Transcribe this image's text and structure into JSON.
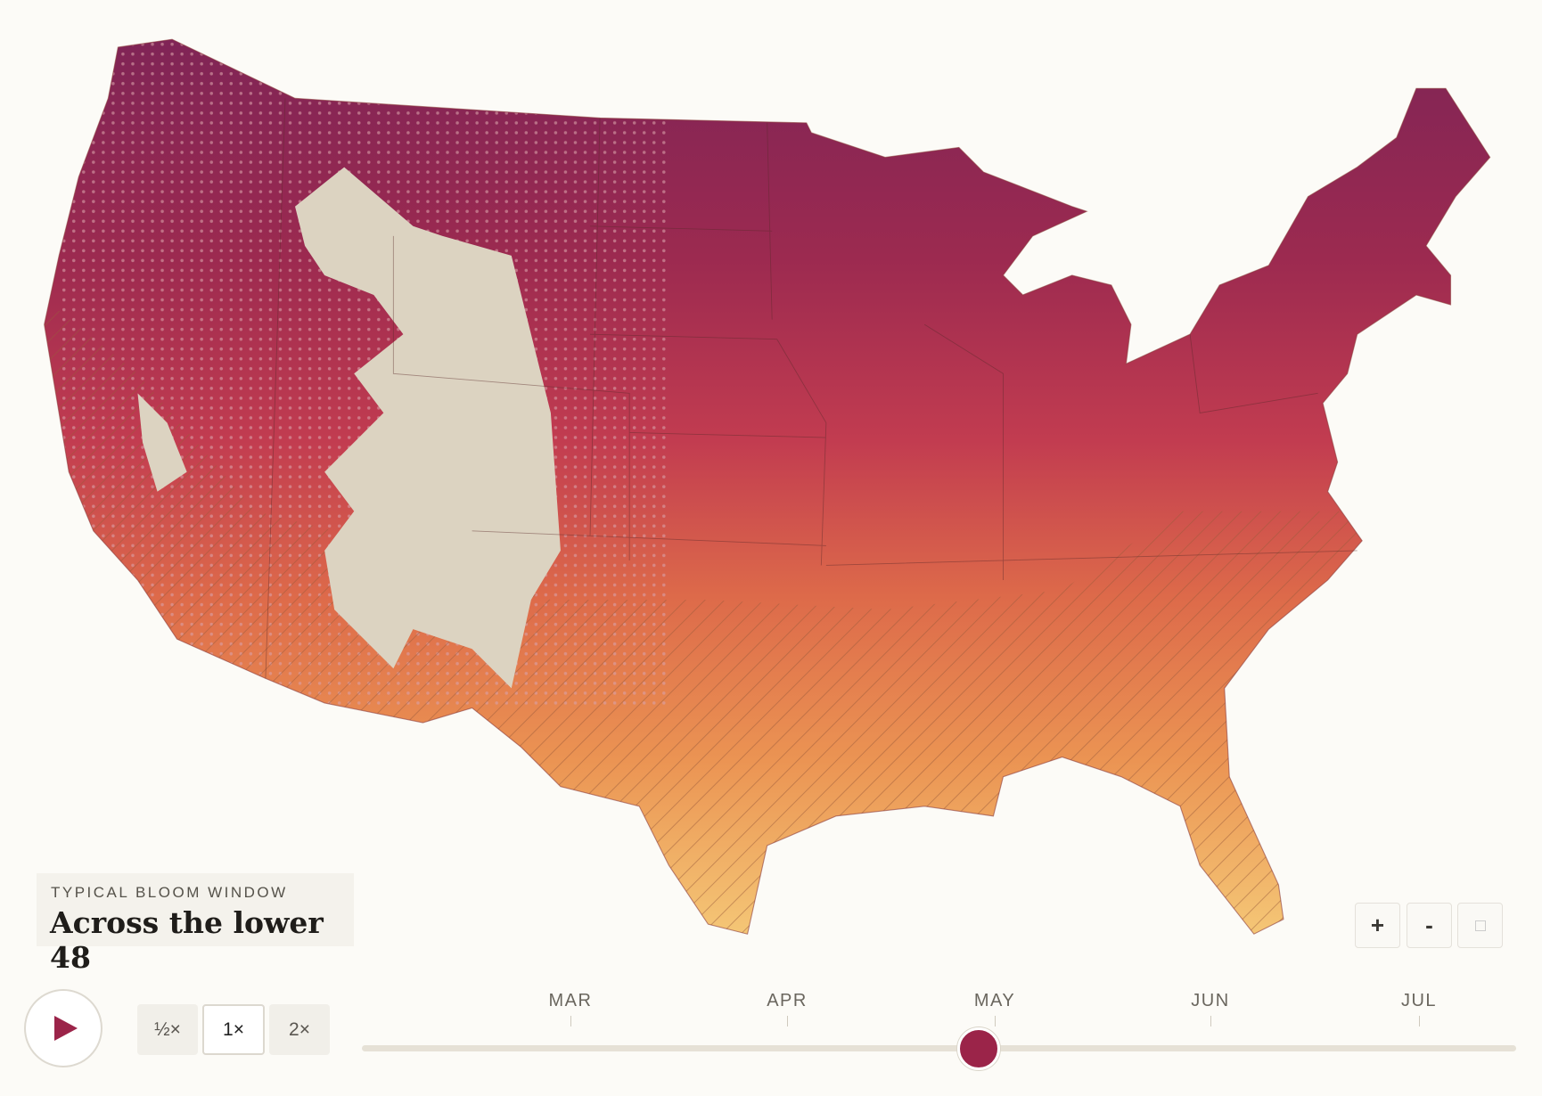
{
  "legend": {
    "eyebrow": "TYPICAL BLOOM WINDOW",
    "title": "Across the lower 48"
  },
  "speeds": [
    "½×",
    "1×",
    "2×"
  ],
  "zoom": [
    "+",
    "-"
  ],
  "timeline": {
    "months": [
      "MAR",
      "APR",
      "MAY",
      "JUN",
      "JUL"
    ]
  }
}
